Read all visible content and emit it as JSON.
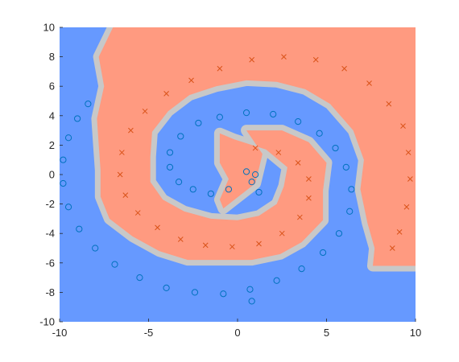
{
  "chart_data": {
    "type": "scatter",
    "title": "",
    "xlabel": "",
    "ylabel": "",
    "xlim": [
      -10,
      10
    ],
    "ylim": [
      -10,
      10
    ],
    "grid": false,
    "legend": "none",
    "x_ticks": [
      -10,
      -5,
      0,
      5,
      10
    ],
    "y_ticks": [
      -10,
      -8,
      -6,
      -4,
      -2,
      0,
      2,
      4,
      6,
      8,
      10
    ],
    "x_tick_labels": [
      "-10",
      "-5",
      "0",
      "5",
      "10"
    ],
    "y_tick_labels": [
      "-10",
      "-8",
      "-6",
      "-4",
      "-2",
      "0",
      "2",
      "4",
      "6",
      "8",
      "10"
    ],
    "background_regions": {
      "class_blue_color": "#6699ff",
      "class_orange_color": "#ff9a80",
      "boundary_color": "#c8c8c8"
    },
    "series": [
      {
        "marker": "circle",
        "color": "#0072bd",
        "points": [
          [
            0.8,
            -0.5
          ],
          [
            1.0,
            0.0
          ],
          [
            0.5,
            0.2
          ],
          [
            -0.5,
            -1.0
          ],
          [
            -1.5,
            -1.3
          ],
          [
            -2.5,
            -1.0
          ],
          [
            -3.3,
            -0.5
          ],
          [
            -3.8,
            0.5
          ],
          [
            -3.8,
            1.5
          ],
          [
            -3.2,
            2.6
          ],
          [
            -2.2,
            3.5
          ],
          [
            -1.0,
            3.9
          ],
          [
            0.5,
            4.2
          ],
          [
            2.0,
            4.1
          ],
          [
            3.4,
            3.6
          ],
          [
            4.6,
            2.8
          ],
          [
            5.5,
            1.8
          ],
          [
            6.1,
            0.5
          ],
          [
            6.4,
            -1.0
          ],
          [
            6.3,
            -2.5
          ],
          [
            5.7,
            -4.0
          ],
          [
            4.8,
            -5.3
          ],
          [
            3.6,
            -6.4
          ],
          [
            2.2,
            -7.2
          ],
          [
            0.7,
            -7.8
          ],
          [
            -0.8,
            -8.1
          ],
          [
            -2.4,
            -8.0
          ],
          [
            -4.0,
            -7.7
          ],
          [
            -5.5,
            -7.0
          ],
          [
            -6.9,
            -6.1
          ],
          [
            -8.0,
            -5.0
          ],
          [
            -8.9,
            -3.7
          ],
          [
            -9.5,
            -2.2
          ],
          [
            -9.8,
            -0.6
          ],
          [
            -9.8,
            1.0
          ],
          [
            -9.5,
            2.5
          ],
          [
            -9.0,
            3.8
          ],
          [
            -8.4,
            4.8
          ],
          [
            1.2,
            -1.2
          ],
          [
            0.8,
            -8.6
          ]
        ]
      },
      {
        "marker": "cross",
        "color": "#d95319",
        "points": [
          [
            1.0,
            1.8
          ],
          [
            2.3,
            1.5
          ],
          [
            3.4,
            0.8
          ],
          [
            4.0,
            -0.3
          ],
          [
            4.0,
            -1.6
          ],
          [
            3.5,
            -2.9
          ],
          [
            2.5,
            -4.0
          ],
          [
            1.2,
            -4.7
          ],
          [
            -0.3,
            -4.9
          ],
          [
            -1.8,
            -4.8
          ],
          [
            -3.2,
            -4.4
          ],
          [
            -4.5,
            -3.6
          ],
          [
            -5.6,
            -2.6
          ],
          [
            -6.3,
            -1.4
          ],
          [
            -6.6,
            0.0
          ],
          [
            -6.5,
            1.5
          ],
          [
            -6.0,
            3.0
          ],
          [
            -5.2,
            4.3
          ],
          [
            -4.0,
            5.5
          ],
          [
            -2.6,
            6.4
          ],
          [
            -1.0,
            7.2
          ],
          [
            0.8,
            7.8
          ],
          [
            2.6,
            8.0
          ],
          [
            4.4,
            7.8
          ],
          [
            6.0,
            7.2
          ],
          [
            7.4,
            6.2
          ],
          [
            8.5,
            4.8
          ],
          [
            9.3,
            3.3
          ],
          [
            9.6,
            1.5
          ],
          [
            9.7,
            -0.3
          ],
          [
            9.5,
            -2.2
          ],
          [
            9.1,
            -3.9
          ],
          [
            8.7,
            -5.0
          ]
        ]
      }
    ]
  }
}
